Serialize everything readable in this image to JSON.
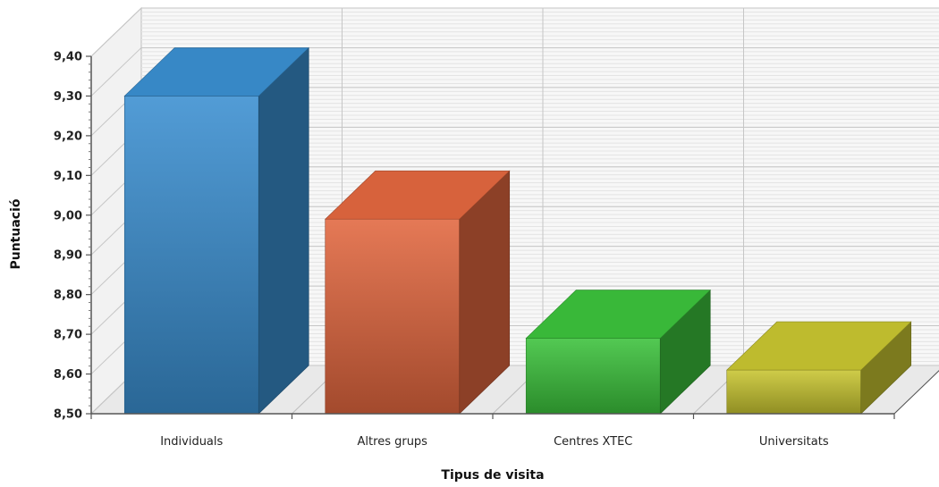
{
  "chart_data": {
    "type": "bar",
    "title": "",
    "xlabel": "Tipus de visita",
    "ylabel": "Puntuació",
    "categories": [
      "Individuals",
      "Altres grups",
      "Centres XTEC",
      "Universitats"
    ],
    "values": [
      9.3,
      8.99,
      8.69,
      8.61
    ],
    "ylim": [
      8.5,
      9.4
    ],
    "yticks": [
      "8,50",
      "8,60",
      "8,70",
      "8,80",
      "8,90",
      "9,00",
      "9,10",
      "9,20",
      "9,30",
      "9,40"
    ],
    "colors": [
      "#3a8fd0",
      "#e2673f",
      "#3cc23c",
      "#c8c530"
    ],
    "grid": true,
    "legend": "none",
    "style": "3d"
  }
}
